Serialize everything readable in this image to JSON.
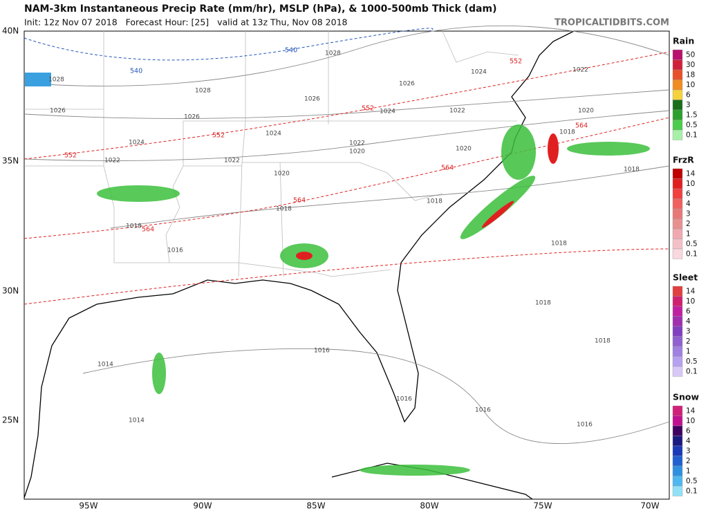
{
  "header": {
    "title": "NAM-3km Instantaneous Precip Rate (mm/hr), MSLP (hPa), & 1000-500mb Thick (dam)",
    "init": "Init: 12z Nov 07 2018   Forecast Hour: [25]   valid at 13z Thu, Nov 08 2018",
    "credit": "TROPICALTIDBITS.COM"
  },
  "axes": {
    "lat_labels": [
      "40N",
      "35N",
      "30N",
      "25N"
    ],
    "lon_labels": [
      "95W",
      "90W",
      "85W",
      "80W",
      "75W",
      "70W"
    ]
  },
  "pressure_labels": [
    1028,
    1028,
    1028,
    1026,
    1026,
    1026,
    1026,
    1024,
    1024,
    1024,
    1024,
    1022,
    1022,
    1022,
    1022,
    1022,
    1020,
    1020,
    1020,
    1020,
    1018,
    1018,
    1018,
    1018,
    1018,
    1018,
    1018,
    1018,
    1016,
    1016,
    1016,
    1016,
    1016,
    1014,
    1014
  ],
  "thickness_labels": [
    540,
    540,
    552,
    552,
    552,
    552,
    564,
    564,
    564,
    564
  ],
  "legends": [
    {
      "title": "Rain",
      "levels": [
        50,
        30,
        18,
        10,
        6,
        3,
        1.5,
        0.5,
        0.1
      ],
      "colors": [
        "#b8106e",
        "#d0203a",
        "#e8502a",
        "#f08c20",
        "#f5d23c",
        "#1a6e1a",
        "#2ca02c",
        "#4ccd4c",
        "#a8f0a8"
      ]
    },
    {
      "title": "FrzR",
      "levels": [
        14,
        10,
        6,
        4,
        3,
        2,
        1,
        0.5,
        0.1
      ],
      "colors": [
        "#c00000",
        "#e02020",
        "#f04040",
        "#f06060",
        "#e87878",
        "#e89090",
        "#f0a8b0",
        "#f4c0c8",
        "#fad8e0"
      ]
    },
    {
      "title": "Sleet",
      "levels": [
        14,
        10,
        6,
        4,
        3,
        2,
        1,
        0.5,
        0.1
      ],
      "colors": [
        "#e04040",
        "#d02070",
        "#c020a0",
        "#a030b0",
        "#8040c0",
        "#9060d0",
        "#a080e0",
        "#b8a0f0",
        "#d8c8f8"
      ]
    },
    {
      "title": "Snow",
      "levels": [
        14,
        10,
        6,
        4,
        3,
        2,
        1,
        0.5,
        0.1
      ],
      "colors": [
        "#d0207a",
        "#c01090",
        "#400060",
        "#1a1a80",
        "#1a3ab8",
        "#2060d0",
        "#3090e0",
        "#50b8f0",
        "#90e0f8"
      ]
    }
  ]
}
